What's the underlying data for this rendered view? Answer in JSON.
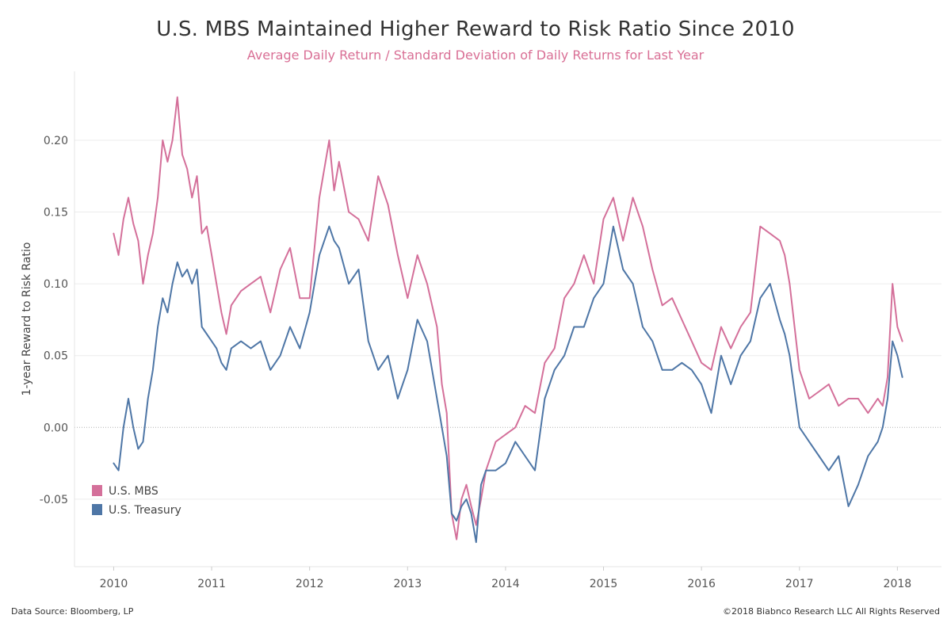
{
  "title": "U.S. MBS Maintained Higher Reward to Risk Ratio Since 2010",
  "subtitle": "Average Daily Return / Standard Deviation of Daily Returns for Last Year",
  "footer": {
    "source": "Data Source: Bloomberg, LP",
    "copyright": "©2018 Biabnco Research LLC  All Rights Reserved"
  },
  "colors": {
    "mbs": "#d4709a",
    "treasury": "#4e76a6",
    "grid": "#ececec",
    "zero": "#b0b0b0"
  },
  "chart_data": {
    "type": "line",
    "title": "U.S. MBS Maintained Higher Reward to Risk Ratio Since 2010",
    "subtitle": "Average Daily Return / Standard Deviation of Daily Returns for Last Year",
    "xlabel": "",
    "ylabel": "1-year Reward to Risk Ratio",
    "xlim": [
      2009.6,
      2018.45
    ],
    "ylim": [
      -0.097,
      0.248
    ],
    "x_ticks": [
      "2010",
      "2011",
      "2012",
      "2013",
      "2014",
      "2015",
      "2016",
      "2017",
      "2018"
    ],
    "y_ticks": [
      "-0.05",
      "0.00",
      "0.05",
      "0.10",
      "0.15",
      "0.20"
    ],
    "grid": true,
    "legend_position": "bottom-left",
    "series": [
      {
        "name": "U.S. MBS",
        "color": "#d4709a",
        "x": [
          2010.0,
          2010.05,
          2010.1,
          2010.15,
          2010.2,
          2010.25,
          2010.3,
          2010.35,
          2010.4,
          2010.45,
          2010.5,
          2010.55,
          2010.6,
          2010.65,
          2010.7,
          2010.75,
          2010.8,
          2010.85,
          2010.9,
          2010.95,
          2011.0,
          2011.05,
          2011.1,
          2011.15,
          2011.2,
          2011.3,
          2011.4,
          2011.5,
          2011.6,
          2011.7,
          2011.8,
          2011.9,
          2012.0,
          2012.1,
          2012.15,
          2012.2,
          2012.25,
          2012.3,
          2012.4,
          2012.5,
          2012.6,
          2012.7,
          2012.8,
          2012.9,
          2013.0,
          2013.1,
          2013.2,
          2013.3,
          2013.35,
          2013.4,
          2013.45,
          2013.5,
          2013.55,
          2013.6,
          2013.65,
          2013.7,
          2013.75,
          2013.8,
          2013.9,
          2014.0,
          2014.1,
          2014.2,
          2014.3,
          2014.4,
          2014.5,
          2014.6,
          2014.7,
          2014.8,
          2014.9,
          2015.0,
          2015.1,
          2015.2,
          2015.3,
          2015.4,
          2015.5,
          2015.6,
          2015.7,
          2015.8,
          2015.9,
          2016.0,
          2016.1,
          2016.2,
          2016.3,
          2016.4,
          2016.5,
          2016.6,
          2016.7,
          2016.8,
          2016.85,
          2016.9,
          2017.0,
          2017.1,
          2017.2,
          2017.3,
          2017.4,
          2017.5,
          2017.6,
          2017.7,
          2017.8,
          2017.85,
          2017.9,
          2017.95,
          2018.0,
          2018.05
        ],
        "values": [
          0.135,
          0.12,
          0.145,
          0.16,
          0.142,
          0.13,
          0.1,
          0.12,
          0.135,
          0.16,
          0.2,
          0.185,
          0.2,
          0.23,
          0.19,
          0.18,
          0.16,
          0.175,
          0.135,
          0.14,
          0.12,
          0.1,
          0.08,
          0.065,
          0.085,
          0.095,
          0.1,
          0.105,
          0.08,
          0.11,
          0.125,
          0.09,
          0.09,
          0.16,
          0.18,
          0.2,
          0.165,
          0.185,
          0.15,
          0.145,
          0.13,
          0.175,
          0.155,
          0.12,
          0.09,
          0.12,
          0.1,
          0.07,
          0.03,
          0.01,
          -0.06,
          -0.078,
          -0.05,
          -0.04,
          -0.055,
          -0.068,
          -0.05,
          -0.03,
          -0.01,
          -0.005,
          0.0,
          0.015,
          0.01,
          0.045,
          0.055,
          0.09,
          0.1,
          0.12,
          0.1,
          0.145,
          0.16,
          0.13,
          0.16,
          0.14,
          0.11,
          0.085,
          0.09,
          0.075,
          0.06,
          0.045,
          0.04,
          0.07,
          0.055,
          0.07,
          0.08,
          0.14,
          0.135,
          0.13,
          0.12,
          0.1,
          0.04,
          0.02,
          0.025,
          0.03,
          0.015,
          0.02,
          0.02,
          0.01,
          0.02,
          0.015,
          0.035,
          0.1,
          0.07,
          0.06
        ]
      },
      {
        "name": "U.S. Treasury",
        "color": "#4e76a6",
        "x": [
          2010.0,
          2010.05,
          2010.1,
          2010.15,
          2010.2,
          2010.25,
          2010.3,
          2010.35,
          2010.4,
          2010.45,
          2010.5,
          2010.55,
          2010.6,
          2010.65,
          2010.7,
          2010.75,
          2010.8,
          2010.85,
          2010.9,
          2010.95,
          2011.0,
          2011.05,
          2011.1,
          2011.15,
          2011.2,
          2011.3,
          2011.4,
          2011.5,
          2011.6,
          2011.7,
          2011.8,
          2011.9,
          2012.0,
          2012.1,
          2012.15,
          2012.2,
          2012.25,
          2012.3,
          2012.4,
          2012.5,
          2012.6,
          2012.7,
          2012.8,
          2012.9,
          2013.0,
          2013.1,
          2013.2,
          2013.3,
          2013.35,
          2013.4,
          2013.45,
          2013.5,
          2013.55,
          2013.6,
          2013.65,
          2013.7,
          2013.75,
          2013.8,
          2013.9,
          2014.0,
          2014.1,
          2014.2,
          2014.3,
          2014.4,
          2014.5,
          2014.6,
          2014.7,
          2014.8,
          2014.9,
          2015.0,
          2015.1,
          2015.2,
          2015.3,
          2015.4,
          2015.5,
          2015.6,
          2015.7,
          2015.8,
          2015.9,
          2016.0,
          2016.1,
          2016.2,
          2016.3,
          2016.4,
          2016.5,
          2016.6,
          2016.7,
          2016.8,
          2016.85,
          2016.9,
          2017.0,
          2017.1,
          2017.2,
          2017.3,
          2017.4,
          2017.5,
          2017.6,
          2017.7,
          2017.8,
          2017.85,
          2017.9,
          2017.95,
          2018.0,
          2018.05
        ],
        "values": [
          -0.025,
          -0.03,
          0.0,
          0.02,
          0.0,
          -0.015,
          -0.01,
          0.02,
          0.04,
          0.07,
          0.09,
          0.08,
          0.1,
          0.115,
          0.105,
          0.11,
          0.1,
          0.11,
          0.07,
          0.065,
          0.06,
          0.055,
          0.045,
          0.04,
          0.055,
          0.06,
          0.055,
          0.06,
          0.04,
          0.05,
          0.07,
          0.055,
          0.08,
          0.12,
          0.13,
          0.14,
          0.13,
          0.125,
          0.1,
          0.11,
          0.06,
          0.04,
          0.05,
          0.02,
          0.04,
          0.075,
          0.06,
          0.02,
          0.0,
          -0.02,
          -0.06,
          -0.065,
          -0.055,
          -0.05,
          -0.06,
          -0.08,
          -0.04,
          -0.03,
          -0.03,
          -0.025,
          -0.01,
          -0.02,
          -0.03,
          0.02,
          0.04,
          0.05,
          0.07,
          0.07,
          0.09,
          0.1,
          0.14,
          0.11,
          0.1,
          0.07,
          0.06,
          0.04,
          0.04,
          0.045,
          0.04,
          0.03,
          0.01,
          0.05,
          0.03,
          0.05,
          0.06,
          0.09,
          0.1,
          0.075,
          0.065,
          0.05,
          0.0,
          -0.01,
          -0.02,
          -0.03,
          -0.02,
          -0.055,
          -0.04,
          -0.02,
          -0.01,
          0.0,
          0.02,
          0.06,
          0.05,
          0.035
        ]
      }
    ]
  }
}
